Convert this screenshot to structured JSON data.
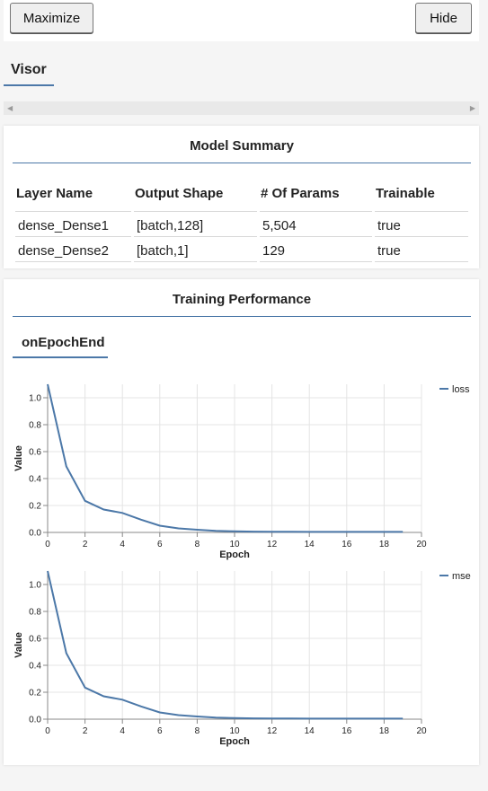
{
  "toolbar": {
    "maximize_label": "Maximize",
    "hide_label": "Hide"
  },
  "visor": {
    "tab_label": "Visor"
  },
  "model_summary": {
    "title": "Model Summary",
    "columns": [
      "Layer Name",
      "Output Shape",
      "# Of Params",
      "Trainable"
    ],
    "rows": [
      [
        "dense_Dense1",
        "[batch,128]",
        "5,504",
        "true"
      ],
      [
        "dense_Dense2",
        "[batch,1]",
        "129",
        "true"
      ]
    ]
  },
  "training": {
    "title": "Training Performance",
    "tab_label": "onEpochEnd"
  },
  "colors": {
    "accent": "#4c78a8"
  },
  "chart_data": [
    {
      "type": "line",
      "xlabel": "Epoch",
      "ylabel": "Value",
      "xlim": [
        0,
        20
      ],
      "ylim": [
        0,
        1.1
      ],
      "xticks": [
        "0",
        "2",
        "4",
        "6",
        "8",
        "10",
        "12",
        "14",
        "16",
        "18",
        "20"
      ],
      "yticks": [
        "0.0",
        "0.2",
        "0.4",
        "0.6",
        "0.8",
        "1.0"
      ],
      "grid": true,
      "legend": "top-right",
      "series": [
        {
          "name": "loss",
          "x": [
            0,
            1,
            2,
            3,
            4,
            5,
            6,
            7,
            8,
            9,
            10,
            11,
            12,
            13,
            14,
            15,
            16,
            17,
            18,
            19
          ],
          "values": [
            1.1,
            0.49,
            0.235,
            0.17,
            0.145,
            0.095,
            0.05,
            0.03,
            0.02,
            0.012,
            0.008,
            0.006,
            0.005,
            0.005,
            0.004,
            0.004,
            0.004,
            0.004,
            0.004,
            0.004
          ]
        }
      ]
    },
    {
      "type": "line",
      "xlabel": "Epoch",
      "ylabel": "Value",
      "xlim": [
        0,
        20
      ],
      "ylim": [
        0,
        1.1
      ],
      "xticks": [
        "0",
        "2",
        "4",
        "6",
        "8",
        "10",
        "12",
        "14",
        "16",
        "18",
        "20"
      ],
      "yticks": [
        "0.0",
        "0.2",
        "0.4",
        "0.6",
        "0.8",
        "1.0"
      ],
      "grid": true,
      "legend": "top-right",
      "series": [
        {
          "name": "mse",
          "x": [
            0,
            1,
            2,
            3,
            4,
            5,
            6,
            7,
            8,
            9,
            10,
            11,
            12,
            13,
            14,
            15,
            16,
            17,
            18,
            19
          ],
          "values": [
            1.1,
            0.49,
            0.235,
            0.17,
            0.145,
            0.095,
            0.05,
            0.03,
            0.02,
            0.012,
            0.008,
            0.006,
            0.005,
            0.005,
            0.004,
            0.004,
            0.004,
            0.004,
            0.004,
            0.004
          ]
        }
      ]
    }
  ]
}
